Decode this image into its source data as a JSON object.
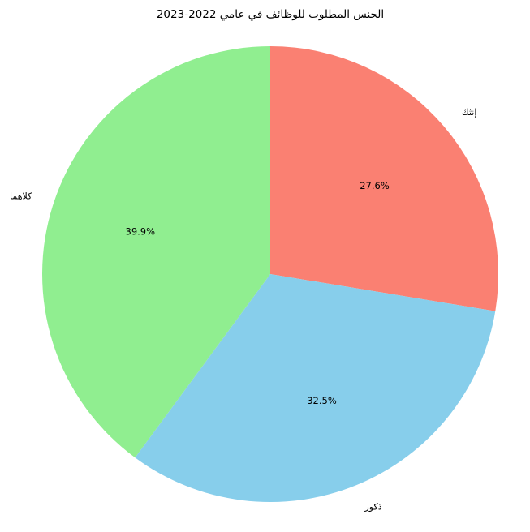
{
  "chart_data": {
    "type": "pie",
    "title": "الجنس المطلوب للوظائف في عامي 2022-2023",
    "categories": [
      "إنثك",
      "ذكور",
      "كلاهما"
    ],
    "values": [
      27.6,
      32.5,
      39.9
    ],
    "percent_labels": [
      "27.6%",
      "32.5%",
      "39.9%"
    ],
    "colors": [
      "#fa8072",
      "#87ceeb",
      "#90ee90"
    ],
    "start_angle_deg": 90,
    "direction": "clockwise",
    "legend": "none"
  }
}
